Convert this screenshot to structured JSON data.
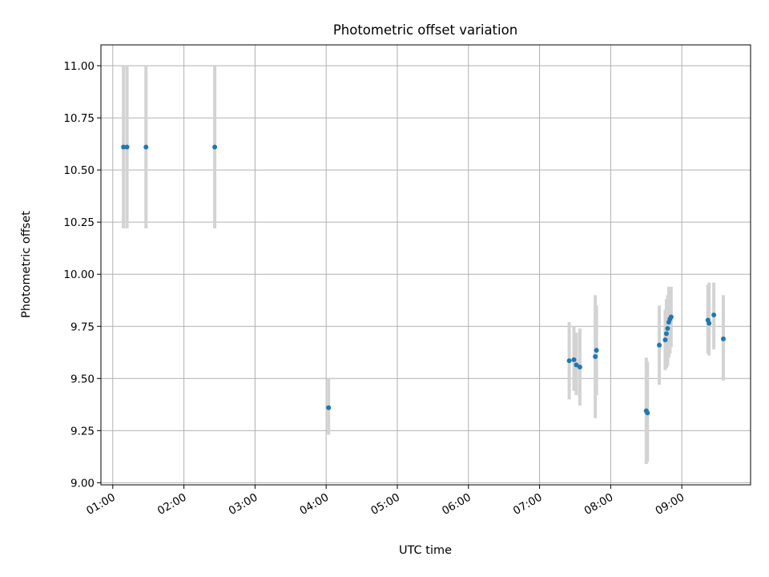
{
  "chart_data": {
    "type": "scatter",
    "title": "Photometric offset variation",
    "xlabel": "UTC time",
    "ylabel": "Photometric offset",
    "x_axis_type": "time",
    "x_ticks": [
      "01:00",
      "02:00",
      "03:00",
      "04:00",
      "05:00",
      "06:00",
      "07:00",
      "08:00",
      "09:00"
    ],
    "xlim": [
      "00:50",
      "09:58"
    ],
    "y_ticks": [
      "9.00",
      "9.25",
      "9.50",
      "9.75",
      "10.00",
      "10.25",
      "10.50",
      "10.75",
      "11.00"
    ],
    "ylim": [
      8.99,
      11.1
    ],
    "grid": true,
    "colors": {
      "points": "#1f77b4",
      "error_bars": "#d3d3d3"
    },
    "points": [
      {
        "x": "01:09",
        "y": 10.61,
        "ylow": 10.22,
        "yhigh": 11.0
      },
      {
        "x": "01:12",
        "y": 10.61,
        "ylow": 10.22,
        "yhigh": 11.0
      },
      {
        "x": "01:28",
        "y": 10.61,
        "ylow": 10.22,
        "yhigh": 11.0
      },
      {
        "x": "02:26",
        "y": 10.61,
        "ylow": 10.22,
        "yhigh": 11.0
      },
      {
        "x": "04:02",
        "y": 9.36,
        "ylow": 9.23,
        "yhigh": 9.5
      },
      {
        "x": "07:25",
        "y": 9.585,
        "ylow": 9.4,
        "yhigh": 9.77
      },
      {
        "x": "07:29",
        "y": 9.59,
        "ylow": 9.44,
        "yhigh": 9.75
      },
      {
        "x": "07:31",
        "y": 9.565,
        "ylow": 9.42,
        "yhigh": 9.72
      },
      {
        "x": "07:34",
        "y": 9.555,
        "ylow": 9.37,
        "yhigh": 9.74
      },
      {
        "x": "07:47",
        "y": 9.605,
        "ylow": 9.31,
        "yhigh": 9.9
      },
      {
        "x": "07:48",
        "y": 9.635,
        "ylow": 9.42,
        "yhigh": 9.85
      },
      {
        "x": "08:30",
        "y": 9.345,
        "ylow": 9.09,
        "yhigh": 9.6
      },
      {
        "x": "08:31",
        "y": 9.335,
        "ylow": 9.1,
        "yhigh": 9.58
      },
      {
        "x": "08:41",
        "y": 9.66,
        "ylow": 9.47,
        "yhigh": 9.85
      },
      {
        "x": "08:46",
        "y": 9.685,
        "ylow": 9.54,
        "yhigh": 9.83
      },
      {
        "x": "08:47",
        "y": 9.715,
        "ylow": 9.55,
        "yhigh": 9.88
      },
      {
        "x": "08:48",
        "y": 9.74,
        "ylow": 9.56,
        "yhigh": 9.9
      },
      {
        "x": "08:49",
        "y": 9.77,
        "ylow": 9.6,
        "yhigh": 9.94
      },
      {
        "x": "08:50",
        "y": 9.785,
        "ylow": 9.62,
        "yhigh": 9.94
      },
      {
        "x": "08:51",
        "y": 9.795,
        "ylow": 9.65,
        "yhigh": 9.94
      },
      {
        "x": "09:22",
        "y": 9.78,
        "ylow": 9.62,
        "yhigh": 9.95
      },
      {
        "x": "09:23",
        "y": 9.765,
        "ylow": 9.61,
        "yhigh": 9.96
      },
      {
        "x": "09:27",
        "y": 9.805,
        "ylow": 9.64,
        "yhigh": 9.96
      },
      {
        "x": "09:35",
        "y": 9.69,
        "ylow": 9.49,
        "yhigh": 9.9
      }
    ]
  }
}
